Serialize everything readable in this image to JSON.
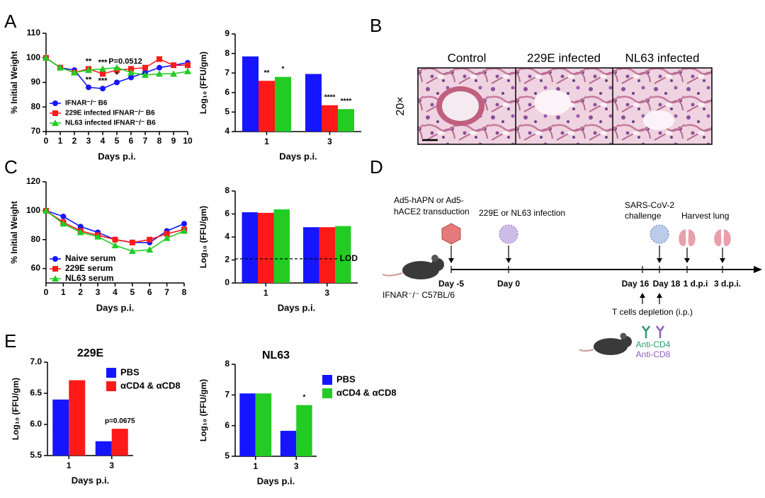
{
  "panels": [
    "A",
    "B",
    "C",
    "D",
    "E"
  ],
  "histology": {
    "magnification": "20×",
    "labels": [
      "Control",
      "229E infected",
      "NL63 infected"
    ]
  },
  "timeline": {
    "transduction": [
      "Ad5-hAPN or Ad5-",
      "hACE2 transduction"
    ],
    "infection": "229E or NL63 infection",
    "challenge": [
      "SARS-CoV-2",
      "challenge"
    ],
    "harvest": "Harvest lung",
    "days": [
      "Day -5",
      "Day 0",
      "Day 16",
      "Day 18",
      "1 d.p.i",
      "3 d.p.i."
    ],
    "mouse": "IFNAR⁻/⁻ C57BL/6",
    "depletion": "T cells depletion (i.p.)",
    "antibodies": [
      "Anti-CD4",
      "Anti-CD8"
    ]
  },
  "chart_data": [
    {
      "type": "line",
      "xlabel": "Days p.i.",
      "ylabel": "% Initial Weight",
      "x": [
        0,
        1,
        2,
        3,
        4,
        5,
        6,
        7,
        8,
        9,
        10
      ],
      "xlim": [
        0,
        10
      ],
      "xticks": [
        0,
        1,
        2,
        3,
        4,
        5,
        6,
        7,
        8,
        9,
        10
      ],
      "ylim": [
        70,
        110
      ],
      "yticks": [
        70,
        80,
        90,
        100,
        110
      ],
      "legend": "lower left",
      "series": [
        {
          "name": "IFNAR⁻/⁻ B6",
          "color": "#1515ff",
          "marker": "circle",
          "values": [
            100,
            96,
            95,
            88,
            87.5,
            90,
            92,
            94,
            96,
            97,
            98
          ]
        },
        {
          "name": "229E infected IFNAR⁻/⁻ B6",
          "color": "#ff1a1a",
          "marker": "square",
          "values": [
            100,
            96,
            94,
            95.5,
            93.5,
            95,
            95.5,
            96,
            99.5,
            97,
            97
          ]
        },
        {
          "name": "NL63  infected IFNAR⁻/⁻ B6",
          "color": "#22cc22",
          "marker": "triangle",
          "values": [
            100,
            96,
            94,
            95,
            95.5,
            96,
            94,
            93,
            93.5,
            93.5,
            94.5
          ]
        }
      ],
      "annotations": [
        {
          "text": "**",
          "x": 3,
          "y": 98.5
        },
        {
          "text": "***",
          "x": 4,
          "y": 98
        },
        {
          "text": "P=0.0512",
          "x": 5.6,
          "y": 98.5
        },
        {
          "text": "**",
          "x": 3,
          "y": 91
        },
        {
          "text": "***",
          "x": 4,
          "y": 90.5
        },
        {
          "text": "*",
          "x": 5,
          "y": 93
        }
      ]
    },
    {
      "type": "bar",
      "xlabel": "Days p.i.",
      "ylabel": "Log₁₀ (FFU/gm)",
      "categories": [
        "1",
        "3"
      ],
      "ylim": [
        4,
        9
      ],
      "yticks": [
        4,
        5,
        6,
        7,
        8,
        9
      ],
      "series": [
        {
          "color": "#1515ff",
          "values": [
            7.85,
            6.95
          ]
        },
        {
          "color": "#ff1a1a",
          "values": [
            6.6,
            5.35
          ],
          "marks": [
            "**",
            "****"
          ]
        },
        {
          "color": "#22cc22",
          "values": [
            6.8,
            5.15
          ],
          "marks": [
            "*",
            "****"
          ]
        }
      ]
    },
    {
      "type": "line",
      "xlabel": "Days p.i.",
      "ylabel": "% Initial Weight",
      "x": [
        0,
        1,
        2,
        3,
        4,
        5,
        6,
        7,
        8
      ],
      "xlim": [
        0,
        8
      ],
      "xticks": [
        0,
        1,
        2,
        3,
        4,
        5,
        6,
        7,
        8
      ],
      "ylim": [
        50,
        120
      ],
      "yticks": [
        60,
        80,
        100,
        120
      ],
      "legend": "lower left",
      "series": [
        {
          "name": "Naive serum",
          "color": "#1515ff",
          "marker": "circle",
          "values": [
            100,
            96,
            89,
            85,
            80,
            78,
            78,
            86,
            91
          ]
        },
        {
          "name": "229E serum",
          "color": "#ff1a1a",
          "marker": "square",
          "values": [
            100,
            92,
            86,
            83,
            80,
            78,
            80,
            84,
            87
          ]
        },
        {
          "name": "NL63 serum",
          "color": "#22cc22",
          "marker": "triangle",
          "values": [
            100,
            91,
            85,
            82,
            76,
            72,
            73,
            81,
            86
          ]
        }
      ]
    },
    {
      "type": "bar",
      "xlabel": "Days p.i.",
      "ylabel": "Log₁₀ (FFU/gm)",
      "categories": [
        "1",
        "3"
      ],
      "ylim": [
        0,
        8
      ],
      "yticks": [
        0,
        2,
        4,
        6,
        8
      ],
      "reference_line": {
        "value": 2.1,
        "label": "LOD"
      },
      "series": [
        {
          "color": "#1515ff",
          "values": [
            6.15,
            4.85
          ]
        },
        {
          "color": "#ff1a1a",
          "values": [
            6.1,
            4.85
          ]
        },
        {
          "color": "#22cc22",
          "values": [
            6.4,
            4.95
          ]
        }
      ]
    },
    {
      "type": "bar",
      "title": "229E",
      "xlabel": "Days p.i.",
      "ylabel": "Log₁₀ (FFU/gm)",
      "categories": [
        "1",
        "3"
      ],
      "ylim": [
        5.5,
        7
      ],
      "yticks": [
        5.5,
        {
          "value": 6,
          "label": "6.0"
        },
        6.5,
        {
          "value": 7,
          "label": "7.0"
        }
      ],
      "legend": "right",
      "series": [
        {
          "name": "PBS",
          "color": "#1515ff",
          "values": [
            6.4,
            5.73
          ]
        },
        {
          "name": "αCD4 & αCD8",
          "color": "#ff1a1a",
          "values": [
            6.71,
            5.93
          ],
          "marks": [
            null,
            "p=0.0675"
          ]
        }
      ]
    },
    {
      "type": "bar",
      "title": "NL63",
      "xlabel": "Days p.i.",
      "ylabel": "Log₁₀ (FFU/gm)",
      "categories": [
        "1",
        "3"
      ],
      "ylim": [
        5,
        8
      ],
      "yticks": [
        5,
        6,
        7,
        8
      ],
      "legend": "right",
      "series": [
        {
          "name": "PBS",
          "color": "#1515ff",
          "values": [
            7.05,
            5.83
          ]
        },
        {
          "name": "αCD4 & αCD8",
          "color": "#22cc22",
          "values": [
            7.05,
            6.67
          ],
          "marks": [
            null,
            "*"
          ]
        }
      ]
    }
  ]
}
